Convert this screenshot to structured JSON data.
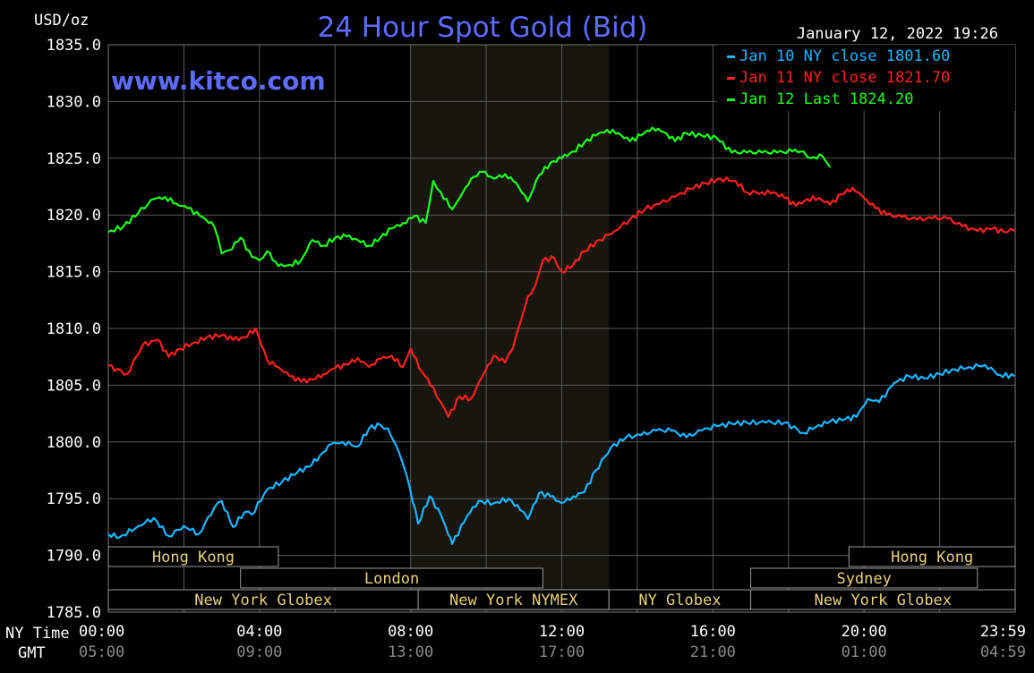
{
  "chart_data": {
    "type": "line",
    "title": "24 Hour Spot Gold (Bid)",
    "watermark": "www.kitco.com",
    "timestamp": "January 12, 2022 19:26",
    "ylabel": "USD/oz",
    "ylim": [
      1785,
      1835
    ],
    "y_ticks": [
      "1835.0",
      "1830.0",
      "1825.0",
      "1820.0",
      "1815.0",
      "1810.0",
      "1805.0",
      "1800.0",
      "1795.0",
      "1790.0",
      "1785.0"
    ],
    "x_axis_names": {
      "ny": "NY Time",
      "gmt": "GMT"
    },
    "x_ticks_ny": [
      "00:00",
      "04:00",
      "08:00",
      "12:00",
      "16:00",
      "20:00",
      "23:59"
    ],
    "x_ticks_gmt": [
      "05:00",
      "09:00",
      "13:00",
      "17:00",
      "21:00",
      "01:00",
      "04:59"
    ],
    "grid": true,
    "legend_position": "top-right",
    "colors": {
      "background": "#000000",
      "plot": "#000000",
      "grid": "#5a5a5a",
      "highlight": "#16160f",
      "title": "#5d6bff",
      "text": "#ffffff",
      "sessions": "#e6d27a"
    },
    "highlight_range_hours": [
      8.0,
      13.25
    ],
    "sessions": [
      {
        "label": "Hong Kong",
        "start": 0,
        "end": 4.5,
        "row": 0
      },
      {
        "label": "Hong Kong",
        "start": 19.6,
        "end": 24,
        "row": 0
      },
      {
        "label": "London",
        "start": 3.5,
        "end": 11.5,
        "row": 1
      },
      {
        "label": "Sydney",
        "start": 17.0,
        "end": 23.0,
        "row": 1
      },
      {
        "label": "New York Globex",
        "start": 0,
        "end": 8.2,
        "row": 2
      },
      {
        "label": "New York NYMEX",
        "start": 8.2,
        "end": 13.25,
        "row": 2
      },
      {
        "label": "NY Globex",
        "start": 13.25,
        "end": 17.0,
        "row": 2
      },
      {
        "label": "New York Globex",
        "start": 17.0,
        "end": 24,
        "row": 2
      }
    ],
    "series": [
      {
        "name": "Jan 10 NY close 1801.60",
        "color": "#19b5ff",
        "x": [
          0,
          0.3,
          0.8,
          1.2,
          1.6,
          2.0,
          2.4,
          2.8,
          3.0,
          3.3,
          3.6,
          3.8,
          4.2,
          4.6,
          5.0,
          5.3,
          5.6,
          5.9,
          6.2,
          6.6,
          6.9,
          7.2,
          7.4,
          7.7,
          7.9,
          8.2,
          8.5,
          8.8,
          9.0,
          9.1,
          9.5,
          9.8,
          10.2,
          10.6,
          10.9,
          11.1,
          11.4,
          11.7,
          12.0,
          12.3,
          12.6,
          12.9,
          13.3,
          13.7,
          14.1,
          14.5,
          14.9,
          15.3,
          15.7,
          16.1,
          16.5,
          16.9,
          17.4,
          17.9,
          18.4,
          18.8,
          19.1,
          19.5,
          19.8,
          20.1,
          20.4,
          20.8,
          21.2,
          21.6,
          22.0,
          22.4,
          22.8,
          23.2,
          23.6,
          23.98
        ],
        "y": [
          1791.9,
          1791.6,
          1792.6,
          1793.3,
          1791.7,
          1792.6,
          1791.9,
          1794.2,
          1794.8,
          1792.5,
          1793.8,
          1793.6,
          1795.8,
          1796.5,
          1797.3,
          1797.8,
          1798.8,
          1799.8,
          1800.0,
          1799.6,
          1801.2,
          1801.5,
          1801.2,
          1799.0,
          1797.0,
          1792.8,
          1795.2,
          1793.6,
          1791.8,
          1791.0,
          1793.5,
          1794.8,
          1794.6,
          1795.0,
          1794.0,
          1793.2,
          1795.5,
          1795.2,
          1794.6,
          1795.2,
          1795.6,
          1797.5,
          1799.5,
          1800.4,
          1800.6,
          1801.0,
          1801.0,
          1800.4,
          1801.0,
          1801.4,
          1801.6,
          1801.7,
          1801.7,
          1801.7,
          1800.8,
          1801.5,
          1801.8,
          1802.0,
          1802.2,
          1803.8,
          1803.5,
          1805.2,
          1805.8,
          1805.6,
          1806.0,
          1806.4,
          1806.6,
          1806.8,
          1805.9,
          1805.8
        ]
      },
      {
        "name": "Jan 11 NY close 1821.70",
        "color": "#ff1f1f",
        "x": [
          0,
          0.5,
          0.9,
          1.3,
          1.6,
          1.9,
          2.3,
          2.6,
          3.0,
          3.3,
          3.6,
          3.9,
          4.2,
          4.5,
          4.8,
          5.1,
          5.4,
          5.7,
          6.0,
          6.3,
          6.6,
          6.9,
          7.2,
          7.5,
          7.8,
          8.0,
          8.3,
          8.6,
          8.8,
          9.0,
          9.3,
          9.6,
          9.9,
          10.2,
          10.5,
          10.7,
          10.9,
          11.1,
          11.3,
          11.5,
          11.8,
          12.0,
          12.3,
          12.6,
          13.0,
          13.4,
          13.8,
          14.2,
          14.6,
          15.0,
          15.4,
          15.8,
          16.2,
          16.6,
          16.9,
          17.3,
          17.6,
          17.9,
          18.2,
          18.5,
          18.8,
          19.1,
          19.4,
          19.7,
          20.0,
          20.3,
          20.6,
          21.0,
          21.4,
          21.8,
          22.2,
          22.6,
          23.0,
          23.4,
          23.7,
          23.98
        ],
        "y": [
          1806.7,
          1806.0,
          1808.5,
          1809.0,
          1807.5,
          1808.2,
          1808.8,
          1809.2,
          1809.4,
          1809.0,
          1809.2,
          1810.0,
          1807.2,
          1806.6,
          1805.8,
          1805.3,
          1805.5,
          1806.0,
          1806.5,
          1806.8,
          1807.4,
          1806.6,
          1807.3,
          1807.6,
          1806.6,
          1808.2,
          1806.2,
          1804.8,
          1803.5,
          1802.2,
          1804.0,
          1803.8,
          1805.8,
          1807.6,
          1807.0,
          1808.2,
          1810.5,
          1812.8,
          1813.8,
          1816.0,
          1816.2,
          1815.0,
          1815.6,
          1816.8,
          1817.8,
          1818.6,
          1819.6,
          1820.5,
          1821.0,
          1821.6,
          1822.3,
          1822.8,
          1823.2,
          1823.0,
          1822.0,
          1822.0,
          1822.0,
          1821.5,
          1820.8,
          1821.4,
          1821.5,
          1820.9,
          1821.8,
          1822.4,
          1821.5,
          1820.6,
          1820.0,
          1819.8,
          1819.6,
          1819.7,
          1819.7,
          1819.0,
          1818.6,
          1818.8,
          1818.5,
          1818.6
        ]
      },
      {
        "name": "Jan 12 Last 1824.20",
        "color": "#19ff19",
        "x": [
          0,
          0.4,
          0.8,
          1.2,
          1.5,
          1.8,
          2.1,
          2.5,
          2.8,
          3.0,
          3.2,
          3.5,
          3.8,
          4.0,
          4.2,
          4.5,
          4.8,
          5.1,
          5.4,
          5.7,
          6.0,
          6.3,
          6.6,
          6.9,
          7.2,
          7.5,
          7.8,
          8.1,
          8.4,
          8.6,
          8.8,
          9.1,
          9.3,
          9.6,
          9.9,
          10.2,
          10.5,
          10.8,
          11.1,
          11.4,
          11.7,
          12.0,
          12.3,
          12.6,
          12.9,
          13.2,
          13.5,
          13.8,
          14.1,
          14.4,
          14.7,
          15.0,
          15.3,
          15.7,
          16.1,
          16.5,
          16.9,
          17.3,
          17.7,
          18.1,
          18.4,
          18.6,
          18.9,
          19.1
        ],
        "y": [
          1818.5,
          1819.0,
          1820.2,
          1821.4,
          1821.6,
          1821.0,
          1820.6,
          1819.8,
          1819.0,
          1816.6,
          1816.9,
          1818.0,
          1816.3,
          1816.0,
          1816.8,
          1815.5,
          1815.6,
          1816.0,
          1817.8,
          1817.3,
          1818.0,
          1818.1,
          1817.8,
          1817.3,
          1818.0,
          1818.8,
          1819.3,
          1819.9,
          1819.3,
          1823.0,
          1822.0,
          1820.5,
          1821.5,
          1823.2,
          1823.8,
          1823.2,
          1823.6,
          1822.8,
          1821.2,
          1823.5,
          1824.6,
          1825.0,
          1825.6,
          1826.4,
          1827.0,
          1827.5,
          1827.2,
          1826.5,
          1827.0,
          1827.7,
          1827.3,
          1826.5,
          1827.2,
          1827.0,
          1826.8,
          1825.5,
          1825.5,
          1825.5,
          1825.5,
          1825.6,
          1825.6,
          1825.0,
          1825.2,
          1824.2
        ]
      }
    ]
  }
}
